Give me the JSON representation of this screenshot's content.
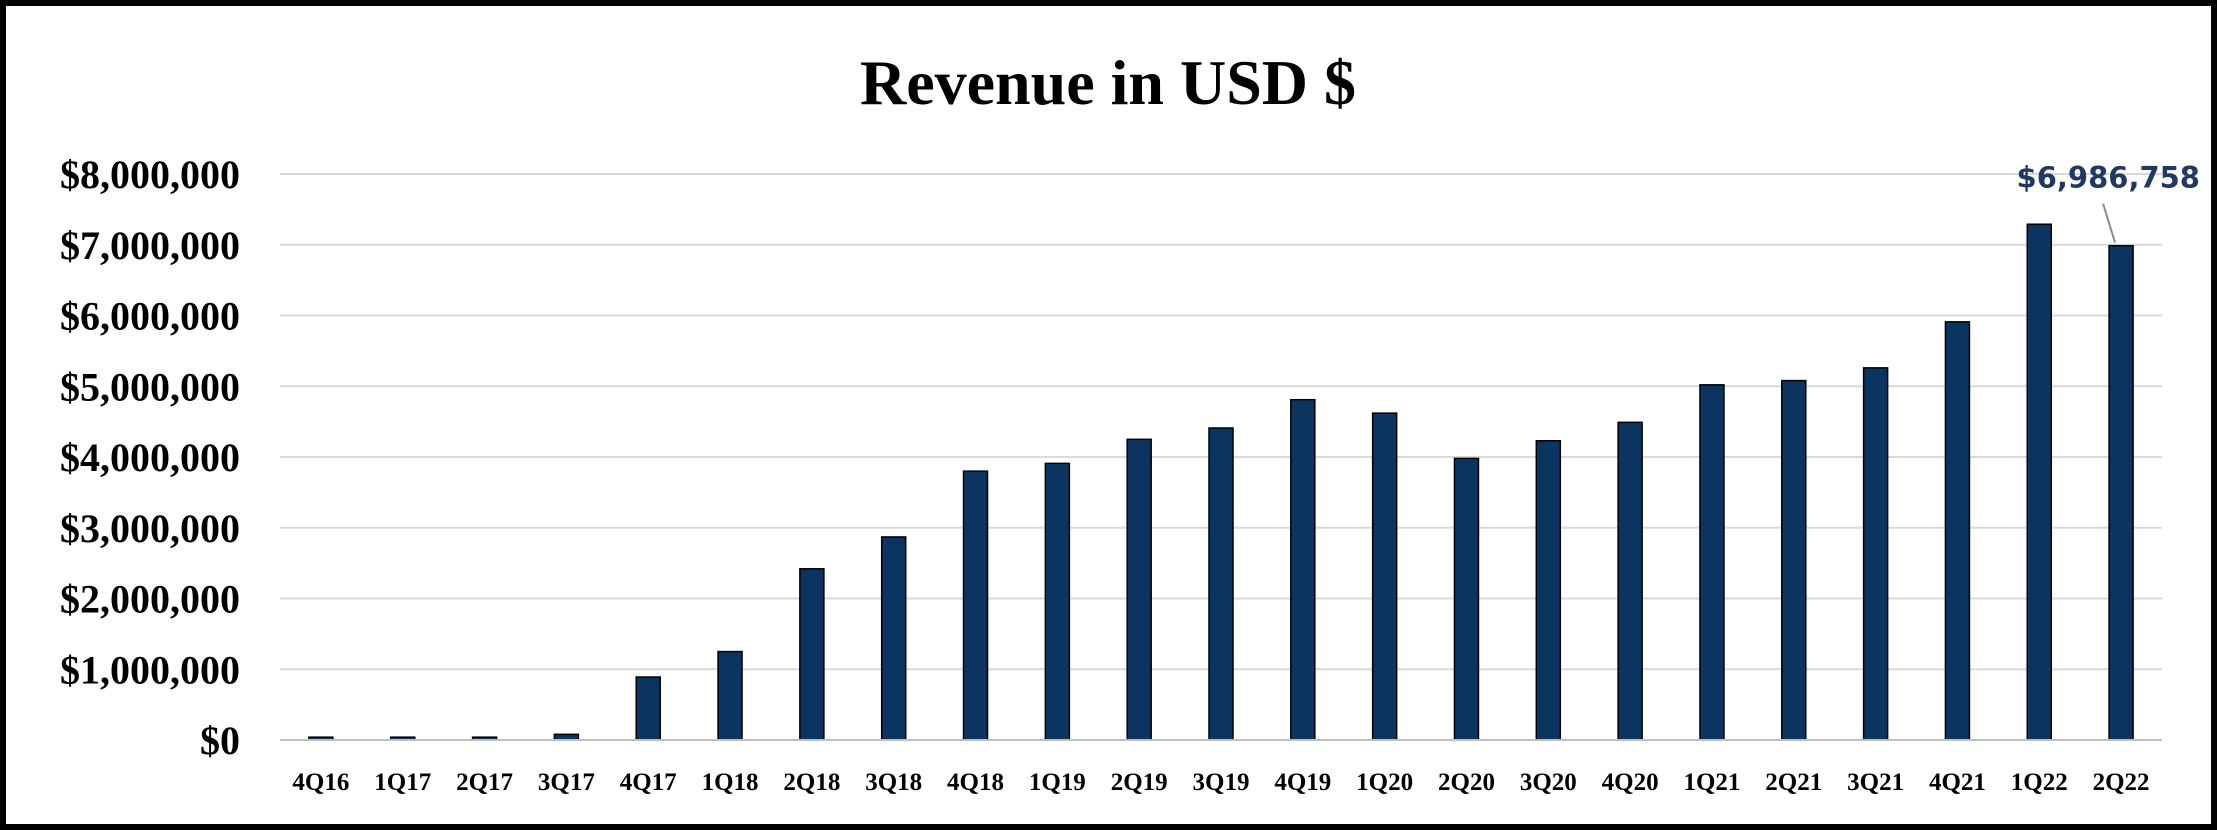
{
  "chart_data": {
    "type": "bar",
    "title": "Revenue in USD $",
    "xlabel": "",
    "ylabel": "",
    "ylim": [
      0,
      8000000
    ],
    "yticks": [
      0,
      1000000,
      2000000,
      3000000,
      4000000,
      5000000,
      6000000,
      7000000,
      8000000
    ],
    "ytick_labels": [
      "$0",
      "$1,000,000",
      "$2,000,000",
      "$3,000,000",
      "$4,000,000",
      "$5,000,000",
      "$6,000,000",
      "$7,000,000",
      "$8,000,000"
    ],
    "grid": true,
    "legend": "none",
    "categories": [
      "4Q16",
      "1Q17",
      "2Q17",
      "3Q17",
      "4Q17",
      "1Q18",
      "2Q18",
      "3Q18",
      "4Q18",
      "1Q19",
      "2Q19",
      "3Q19",
      "4Q19",
      "1Q20",
      "2Q20",
      "3Q20",
      "4Q20",
      "1Q21",
      "2Q21",
      "3Q21",
      "4Q21",
      "1Q22",
      "2Q22"
    ],
    "values": [
      40000,
      40000,
      40000,
      80000,
      890000,
      1250000,
      2420000,
      2870000,
      3800000,
      3910000,
      4250000,
      4410000,
      4810000,
      4620000,
      3980000,
      4230000,
      4490000,
      5020000,
      5080000,
      5260000,
      5910000,
      7290000,
      6986758
    ],
    "bar_color": "#0b3560",
    "annotations": [
      {
        "category": "2Q22",
        "text": "$6,986,758",
        "color": "#1f3864"
      }
    ]
  }
}
